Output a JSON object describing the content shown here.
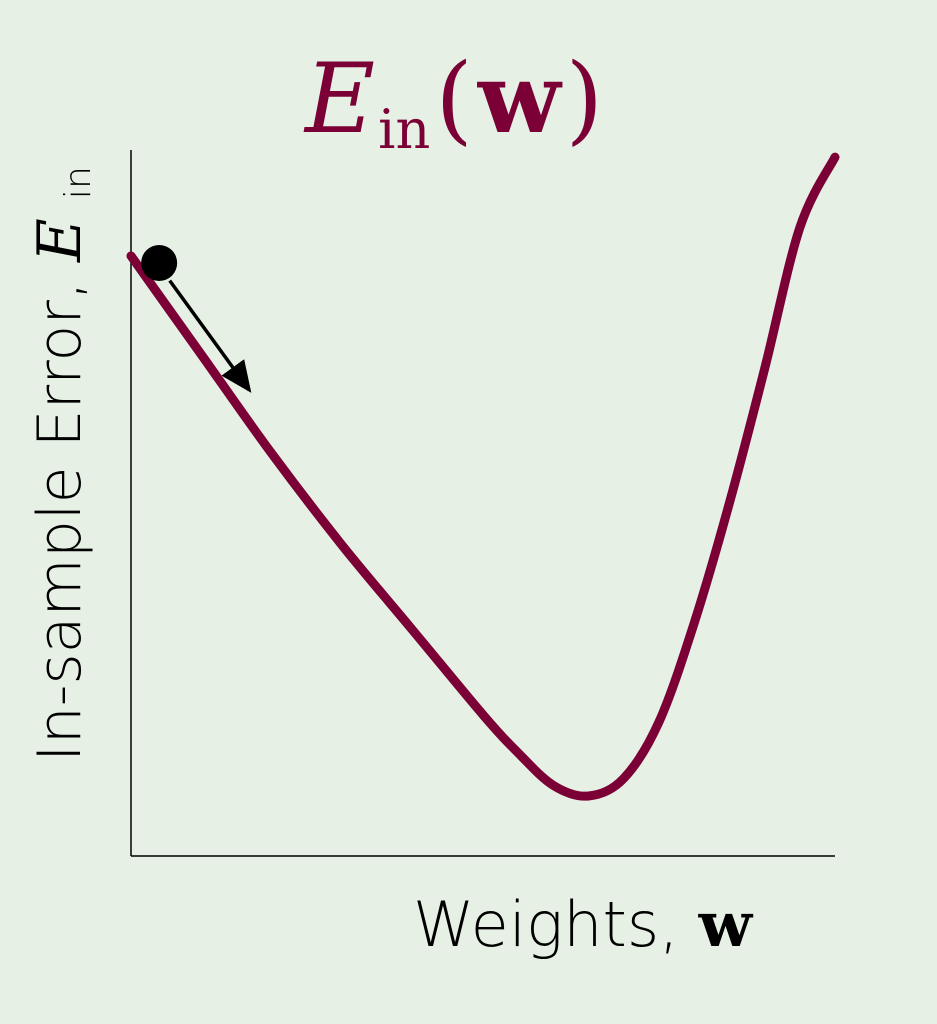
{
  "colors": {
    "background": "#e6f0e4",
    "curve": "#7a0035",
    "axes": "#000000",
    "marker": "#000000"
  },
  "chart_data": {
    "type": "line",
    "title": {
      "symbol": "E",
      "subscript": "in",
      "open_paren": "(",
      "variable": "w",
      "close_paren": ")"
    },
    "xlabel": {
      "text": "Weights, ",
      "variable": "w"
    },
    "ylabel": {
      "text": "In-sample Error, ",
      "symbol": "E",
      "subscript": "in"
    },
    "xlim": [
      0,
      1
    ],
    "ylim": [
      0,
      1
    ],
    "grid": false,
    "series": [
      {
        "color": "#7a0035",
        "x": [
          0.0,
          0.1,
          0.2,
          0.3,
          0.4,
          0.5,
          0.55,
          0.6,
          0.65,
          0.7,
          0.75,
          0.8,
          0.85,
          0.9,
          0.95,
          1.0
        ],
        "y": [
          0.85,
          0.71,
          0.57,
          0.44,
          0.32,
          0.2,
          0.146,
          0.1,
          0.085,
          0.11,
          0.19,
          0.33,
          0.5,
          0.69,
          0.89,
          0.99
        ]
      }
    ],
    "annotations": [
      {
        "type": "point",
        "x": 0.04,
        "y": 0.84,
        "color": "#000000"
      },
      {
        "type": "arrow",
        "from": [
          0.055,
          0.815
        ],
        "to": [
          0.168,
          0.66
        ],
        "color": "#000000"
      }
    ]
  }
}
